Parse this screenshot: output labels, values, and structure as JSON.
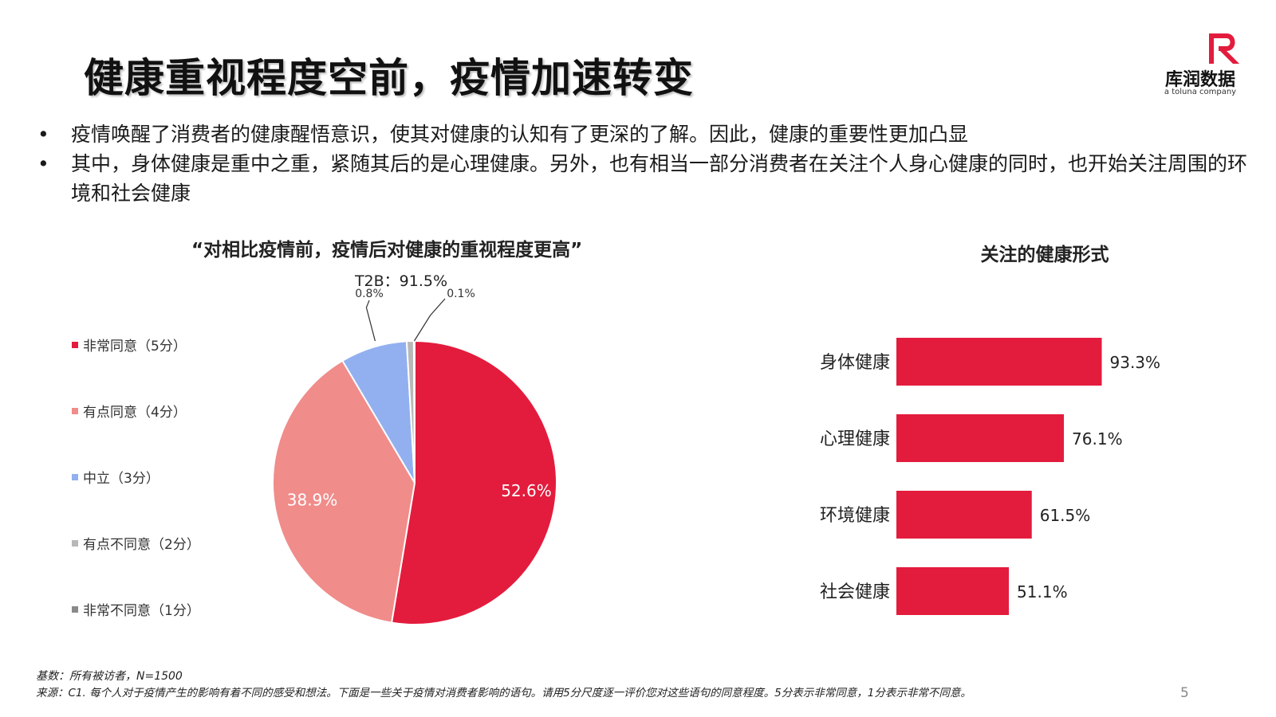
{
  "title": "健康重视程度空前，疫情加速转变",
  "logo": {
    "brand": "库润数据",
    "sub": "a toluna company",
    "color": "#e31c3d"
  },
  "bullets": [
    "疫情唤醒了消费者的健康醒悟意识，使其对健康的认知有了更深的了解。因此，健康的重要性更加凸显",
    "其中，身体健康是重中之重，紧随其后的是心理健康。另外，也有相当一部分消费者在关注个人身心健康的同时，也开始关注周围的环境和社会健康"
  ],
  "bullet_symbol": "•",
  "chart_data": [
    {
      "type": "pie",
      "title": "“对相比疫情前，疫情后对健康的重视程度更高”",
      "annotation": "T2B：91.5%",
      "legend_position": "left",
      "slices": [
        {
          "label": "非常同意（5分）",
          "value": 52.6,
          "display": "52.6%",
          "color": "#e31c3d"
        },
        {
          "label": "有点同意（4分）",
          "value": 38.9,
          "display": "38.9%",
          "color": "#f08c8a"
        },
        {
          "label": "中立（3分）",
          "value": 7.6,
          "display": "",
          "color": "#92b0f0"
        },
        {
          "label": "有点不同意（2分）",
          "value": 0.8,
          "display": "0.8%",
          "color": "#b8b8b8"
        },
        {
          "label": "非常不同意（1分）",
          "value": 0.1,
          "display": "0.1%",
          "color": "#8a8a8a"
        }
      ]
    },
    {
      "type": "bar",
      "orientation": "horizontal",
      "title": "关注的健康形式",
      "categories": [
        "身体健康",
        "心理健康",
        "环境健康",
        "社会健康"
      ],
      "values": [
        93.3,
        76.1,
        61.5,
        51.1
      ],
      "labels": [
        "93.3%",
        "76.1%",
        "61.5%",
        "51.1%"
      ],
      "color": "#e31c3d",
      "xlim": [
        0,
        100
      ]
    }
  ],
  "footnotes": {
    "base": "基数：所有被访者，N=1500",
    "source": "来源：C1. 每个人对于疫情产生的影响有着不同的感受和想法。下面是一些关于疫情对消费者影响的语句。请用5分尺度逐一评价您对这些语句的同意程度。5分表示非常同意，1分表示非常不同意。"
  },
  "page_number": "5"
}
